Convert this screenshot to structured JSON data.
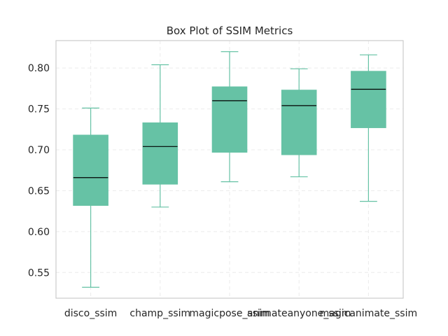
{
  "chart_data": {
    "type": "box",
    "title": "Box Plot of SSIM Metrics",
    "xlabel": "",
    "ylabel": "",
    "categories": [
      "disco_ssim",
      "champ_ssim",
      "magicpose_ssim",
      "animateanyone_ssim",
      "magicanimate_ssim"
    ],
    "boxes": [
      {
        "name": "disco_ssim",
        "whisker_low": 0.532,
        "q1": 0.632,
        "median": 0.666,
        "q3": 0.718,
        "whisker_high": 0.751
      },
      {
        "name": "champ_ssim",
        "whisker_low": 0.63,
        "q1": 0.658,
        "median": 0.704,
        "q3": 0.733,
        "whisker_high": 0.804
      },
      {
        "name": "magicpose_ssim",
        "whisker_low": 0.661,
        "q1": 0.697,
        "median": 0.76,
        "q3": 0.777,
        "whisker_high": 0.82
      },
      {
        "name": "animateanyone_ssim",
        "whisker_low": 0.667,
        "q1": 0.694,
        "median": 0.754,
        "q3": 0.773,
        "whisker_high": 0.799
      },
      {
        "name": "magicanimate_ssim",
        "whisker_low": 0.637,
        "q1": 0.727,
        "median": 0.774,
        "q3": 0.796,
        "whisker_high": 0.816
      }
    ],
    "ylim": [
      0.5186,
      0.8335
    ],
    "yticks": [
      "0.55",
      "0.60",
      "0.65",
      "0.70",
      "0.75",
      "0.80"
    ],
    "grid": true,
    "box_color": "#66c2a5",
    "median_color": "#000000",
    "grid_color": "#ebebeb",
    "frame_color": "#cccccc",
    "text_color": "#262626"
  }
}
